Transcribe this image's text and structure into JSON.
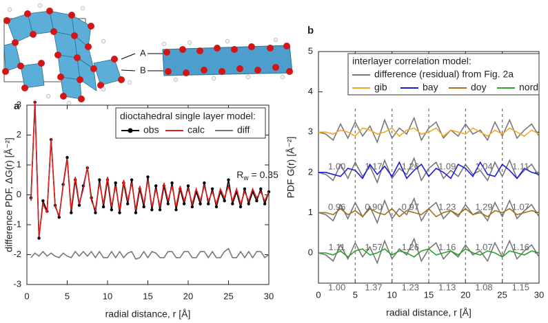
{
  "panel_labels": {
    "a": "a",
    "b": "b"
  },
  "structure_labels": {
    "A": "A",
    "B": "B"
  },
  "chart_data": [
    {
      "type": "line",
      "xlabel": "radial distance, r [Å]",
      "ylabel": "difference PDF, ΔG(r) [Å⁻²]",
      "legend_title": "dioctahedral single layer model:",
      "annotation": {
        "symbol": "R",
        "subscript": "w",
        "text": "= 0.35"
      },
      "xlim": [
        0,
        30
      ],
      "ylim": [
        -3,
        3
      ],
      "xticks": [
        0,
        5,
        10,
        15,
        20,
        25,
        30
      ],
      "yticks": [
        -3,
        -2,
        -1,
        0,
        1,
        2,
        3
      ],
      "x": [
        0.5,
        1,
        1.5,
        2,
        2.5,
        3,
        3.5,
        4,
        4.5,
        5,
        5.5,
        6,
        6.5,
        7,
        7.5,
        8,
        8.5,
        9,
        9.5,
        10,
        10.5,
        11,
        11.5,
        12,
        12.5,
        13,
        13.5,
        14,
        14.5,
        15,
        15.5,
        16,
        16.5,
        17,
        17.5,
        18,
        18.5,
        19,
        19.5,
        20,
        20.5,
        21,
        21.5,
        22,
        22.5,
        23,
        23.5,
        24,
        24.5,
        25,
        25.5,
        26,
        26.5,
        27,
        27.5,
        28,
        28.5,
        29,
        29.5,
        30
      ],
      "series": [
        {
          "name": "obs",
          "color": "#000000",
          "marker": "dot",
          "values": [
            -0.1,
            3.1,
            -1.45,
            -0.2,
            -0.55,
            1.85,
            -0.35,
            -0.75,
            0.35,
            1.25,
            -0.6,
            0.5,
            -0.35,
            0.3,
            0.9,
            -0.1,
            -0.6,
            0.5,
            -0.4,
            0.5,
            -0.5,
            0.4,
            -0.6,
            0.4,
            -0.3,
            0.5,
            -0.6,
            0.2,
            -0.4,
            0.6,
            -0.5,
            0.3,
            -0.5,
            0.3,
            -0.3,
            0.4,
            -0.5,
            0.2,
            -0.3,
            0.3,
            -0.4,
            0.1,
            -0.3,
            0.4,
            -0.3,
            0.2,
            -0.4,
            0.1,
            -0.2,
            0.5,
            -0.3,
            0.1,
            -0.4,
            0.2,
            -0.3,
            0.1,
            -0.2,
            0.2,
            -0.3,
            0.1
          ]
        },
        {
          "name": "calc",
          "color": "#e02020",
          "values": [
            -0.2,
            3.15,
            -1.4,
            -0.3,
            -0.6,
            1.9,
            -0.4,
            -0.7,
            0.3,
            1.2,
            -0.5,
            0.6,
            -0.3,
            0.2,
            0.95,
            -0.2,
            -0.5,
            0.4,
            -0.3,
            0.6,
            -0.4,
            0.3,
            -0.5,
            0.5,
            -0.2,
            0.4,
            -0.5,
            0.3,
            -0.3,
            0.5,
            -0.4,
            0.2,
            -0.4,
            0.4,
            -0.2,
            0.3,
            -0.4,
            0.3,
            -0.2,
            0.2,
            -0.3,
            0.2,
            -0.2,
            0.3,
            -0.2,
            0.1,
            -0.3,
            0.2,
            -0.1,
            0.3,
            -0.2,
            0.2,
            -0.3,
            0.1,
            -0.2,
            0.2,
            -0.1,
            0.1,
            -0.2,
            0.1
          ]
        },
        {
          "name": "diff",
          "color": "#777777",
          "values": [
            -2.1,
            -1.95,
            -2.05,
            -1.9,
            -2.05,
            -1.95,
            -2.05,
            -2.1,
            -1.95,
            -2.05,
            -2.1,
            -1.9,
            -2.05,
            -1.9,
            -2.05,
            -1.9,
            -2.1,
            -1.9,
            -2.1,
            -2.1,
            -1.9,
            -2.1,
            -1.9,
            -2.1,
            -1.95,
            -1.9,
            -2.15,
            -2.1,
            -1.9,
            -2.1,
            -1.9,
            -1.95,
            -2.1,
            -2.1,
            -1.9,
            -1.9,
            -2.1,
            -2.1,
            -1.9,
            -1.9,
            -2.1,
            -2.1,
            -1.9,
            -1.9,
            -2.1,
            -1.9,
            -2.1,
            -2.1,
            -1.9,
            -1.8,
            -2.1,
            -2.1,
            -1.9,
            -2.1,
            -1.9,
            -2.1,
            -1.9,
            -1.9,
            -2.1,
            -2.0
          ]
        }
      ]
    },
    {
      "type": "line",
      "xlabel": "radial distance, r [Å]",
      "ylabel": "PDF G(r) [Å⁻²]",
      "legend_title": "interlayer correlation model:",
      "xlim": [
        0,
        30
      ],
      "ylim": [
        -0.75,
        5
      ],
      "xticks": [
        0,
        5,
        10,
        15,
        20,
        25,
        30
      ],
      "yticks": [
        0,
        1,
        2,
        3,
        4,
        5
      ],
      "vlines": [
        5,
        10,
        15,
        20,
        25
      ],
      "x": [
        0,
        1,
        2,
        3,
        4,
        5,
        6,
        7,
        8,
        9,
        10,
        11,
        12,
        13,
        14,
        15,
        16,
        17,
        18,
        19,
        20,
        21,
        22,
        23,
        24,
        25,
        26,
        27,
        28,
        29,
        30
      ],
      "series": [
        {
          "name": "difference (residual) from Fig. 2a",
          "color": "#777777",
          "values": [
            3.0,
            2.95,
            2.8,
            3.2,
            2.85,
            3.25,
            2.9,
            3.15,
            2.75,
            3.3,
            2.85,
            3.1,
            2.95,
            3.35,
            2.8,
            3.1,
            3.25,
            2.85,
            3.05,
            2.9,
            3.2,
            2.95,
            3.05,
            2.8,
            3.25,
            2.9,
            3.3,
            2.85,
            3.05,
            3.2,
            2.9
          ]
        },
        {
          "name": "gib",
          "color": "#f5a623",
          "values": [
            3.0,
            3.0,
            2.95,
            3.05,
            3.0,
            2.9,
            3.1,
            3.05,
            2.95,
            3.0,
            3.1,
            2.9,
            3.05,
            3.1,
            2.95,
            3.0,
            3.1,
            2.9,
            3.05,
            3.0,
            2.95,
            3.1,
            3.0,
            2.9,
            3.05,
            2.95,
            3.1,
            3.0,
            2.9,
            3.05,
            2.95
          ]
        },
        {
          "color": "#777777",
          "values": [
            2.0,
            1.95,
            1.8,
            2.2,
            1.85,
            2.25,
            1.9,
            2.15,
            1.75,
            2.3,
            1.85,
            2.1,
            1.95,
            2.35,
            1.8,
            2.1,
            2.25,
            1.85,
            2.05,
            1.9,
            2.2,
            1.95,
            2.05,
            1.8,
            2.25,
            1.9,
            2.3,
            1.85,
            2.05,
            2.2,
            1.9
          ]
        },
        {
          "name": "bay",
          "color": "#1a1adb",
          "values": [
            2.0,
            2.0,
            1.95,
            1.9,
            2.1,
            2.05,
            1.85,
            2.2,
            1.95,
            2.15,
            1.9,
            2.25,
            1.85,
            2.05,
            2.2,
            1.9,
            2.1,
            2.0,
            1.85,
            2.2,
            2.1,
            1.9,
            2.25,
            1.95,
            1.9,
            2.2,
            2.05,
            1.85,
            2.1,
            2.0,
            1.95
          ]
        },
        {
          "color": "#777777",
          "values": [
            1.0,
            0.95,
            0.8,
            1.2,
            0.85,
            1.25,
            0.9,
            1.15,
            0.75,
            1.3,
            0.85,
            1.1,
            0.95,
            1.35,
            0.8,
            1.1,
            1.25,
            0.85,
            1.05,
            0.9,
            1.2,
            0.95,
            1.05,
            0.8,
            1.25,
            0.9,
            1.3,
            0.85,
            1.05,
            1.2,
            0.9
          ]
        },
        {
          "name": "doy",
          "color": "#a0701a",
          "values": [
            1.0,
            1.0,
            0.95,
            1.1,
            0.95,
            1.05,
            0.9,
            1.1,
            1.0,
            0.95,
            1.1,
            0.9,
            1.05,
            1.0,
            0.95,
            1.1,
            0.9,
            1.0,
            1.05,
            0.95,
            1.1,
            0.95,
            1.0,
            0.9,
            1.05,
            1.0,
            1.1,
            0.95,
            1.0,
            1.05,
            1.0
          ]
        },
        {
          "color": "#777777",
          "values": [
            0.0,
            -0.05,
            -0.2,
            0.2,
            -0.15,
            0.25,
            -0.1,
            0.15,
            -0.25,
            0.3,
            -0.15,
            0.1,
            -0.05,
            0.35,
            -0.2,
            0.1,
            0.25,
            -0.15,
            0.05,
            -0.1,
            0.2,
            -0.05,
            0.05,
            -0.2,
            0.25,
            -0.1,
            0.3,
            -0.15,
            0.05,
            0.2,
            -0.1
          ]
        },
        {
          "name": "nord",
          "color": "#2ca02c",
          "values": [
            0.0,
            0.0,
            -0.05,
            0.05,
            -0.1,
            0.05,
            0.1,
            -0.05,
            0.0,
            0.1,
            -0.05,
            0.05,
            0.0,
            -0.1,
            0.05,
            0.1,
            -0.05,
            0.0,
            0.05,
            -0.05,
            0.1,
            0.0,
            -0.05,
            0.05,
            0.0,
            -0.1,
            0.05,
            0.0,
            -0.05,
            0.05,
            0.0
          ]
        }
      ],
      "row_labels": [
        {
          "offset": 3,
          "labels": [
            "1.00",
            "1.17",
            "1.26",
            "1.09",
            "1.04",
            "1.11"
          ]
        },
        {
          "offset": 2,
          "labels": [
            "0.96",
            "0.90",
            "0.97",
            "1.23",
            "1.29",
            "1.07"
          ]
        },
        {
          "offset": 1,
          "labels": [
            "1.11",
            "1.57",
            "1.26",
            "1.16",
            "1.07",
            "1.16"
          ]
        },
        {
          "offset": 0,
          "labels": [
            "1.00",
            "1.37",
            "1.23",
            "1.13",
            "1.08",
            "1.15"
          ]
        }
      ]
    }
  ]
}
